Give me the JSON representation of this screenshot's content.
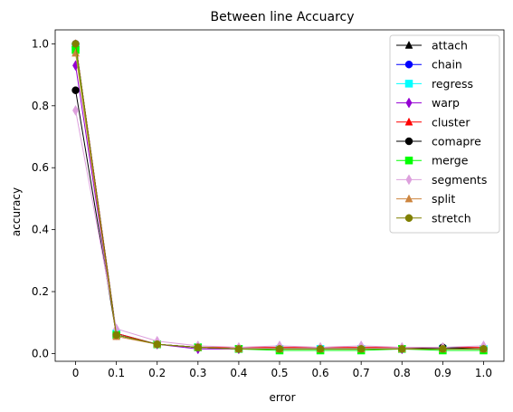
{
  "chart_data": {
    "type": "line",
    "title": "Between line Accuarcy",
    "xlabel": "error",
    "ylabel": "accuracy",
    "x": [
      0,
      0.1,
      0.2,
      0.3,
      0.4,
      0.5,
      0.6,
      0.7,
      0.8,
      0.9,
      1.0
    ],
    "x_tick_labels": [
      "0",
      "0.1",
      "0.2",
      "0.3",
      "0.4",
      "0.5",
      "0.6",
      "0.7",
      "0.8",
      "0.9",
      "1.0"
    ],
    "y_ticks": [
      0.0,
      0.2,
      0.4,
      0.6,
      0.8,
      1.0
    ],
    "y_tick_labels": [
      "0.0",
      "0.2",
      "0.4",
      "0.6",
      "0.8",
      "1.0"
    ],
    "ylim": [
      -0.025,
      1.045
    ],
    "xlim": [
      -0.05,
      1.05
    ],
    "grid": false,
    "legend_position": "top-right",
    "series": [
      {
        "name": "attach",
        "color": "#000000",
        "marker": "triangle",
        "values": [
          1.0,
          0.065,
          0.03,
          0.02,
          0.015,
          0.015,
          0.015,
          0.015,
          0.015,
          0.015,
          0.015
        ]
      },
      {
        "name": "chain",
        "color": "#0000ff",
        "marker": "circle",
        "values": [
          1.0,
          0.065,
          0.03,
          0.02,
          0.015,
          0.015,
          0.015,
          0.015,
          0.015,
          0.015,
          0.015
        ]
      },
      {
        "name": "regress",
        "color": "#00ffff",
        "marker": "square",
        "values": [
          0.99,
          0.065,
          0.03,
          0.02,
          0.015,
          0.015,
          0.015,
          0.015,
          0.015,
          0.015,
          0.015
        ]
      },
      {
        "name": "warp",
        "color": "#9400d3",
        "marker": "diamond",
        "values": [
          0.93,
          0.06,
          0.03,
          0.015,
          0.015,
          0.015,
          0.015,
          0.015,
          0.015,
          0.015,
          0.015
        ]
      },
      {
        "name": "cluster",
        "color": "#ff0000",
        "marker": "triangle",
        "values": [
          1.0,
          0.065,
          0.03,
          0.02,
          0.02,
          0.02,
          0.02,
          0.02,
          0.02,
          0.02,
          0.02
        ]
      },
      {
        "name": "comapre",
        "color": "#000000",
        "marker": "circle",
        "values": [
          0.85,
          0.06,
          0.03,
          0.02,
          0.015,
          0.015,
          0.015,
          0.015,
          0.015,
          0.02,
          0.015
        ]
      },
      {
        "name": "merge",
        "color": "#00ff00",
        "marker": "square",
        "values": [
          0.98,
          0.06,
          0.03,
          0.02,
          0.015,
          0.01,
          0.01,
          0.01,
          0.015,
          0.01,
          0.01
        ]
      },
      {
        "name": "segments",
        "color": "#dda0dd",
        "marker": "diamond",
        "values": [
          0.785,
          0.08,
          0.04,
          0.025,
          0.02,
          0.025,
          0.02,
          0.025,
          0.02,
          0.02,
          0.025
        ]
      },
      {
        "name": "split",
        "color": "#cd853f",
        "marker": "triangle",
        "values": [
          0.97,
          0.055,
          0.03,
          0.02,
          0.015,
          0.015,
          0.015,
          0.015,
          0.015,
          0.015,
          0.015
        ]
      },
      {
        "name": "stretch",
        "color": "#808000",
        "marker": "circle",
        "values": [
          1.0,
          0.06,
          0.03,
          0.02,
          0.015,
          0.015,
          0.015,
          0.015,
          0.015,
          0.015,
          0.015
        ]
      }
    ]
  }
}
